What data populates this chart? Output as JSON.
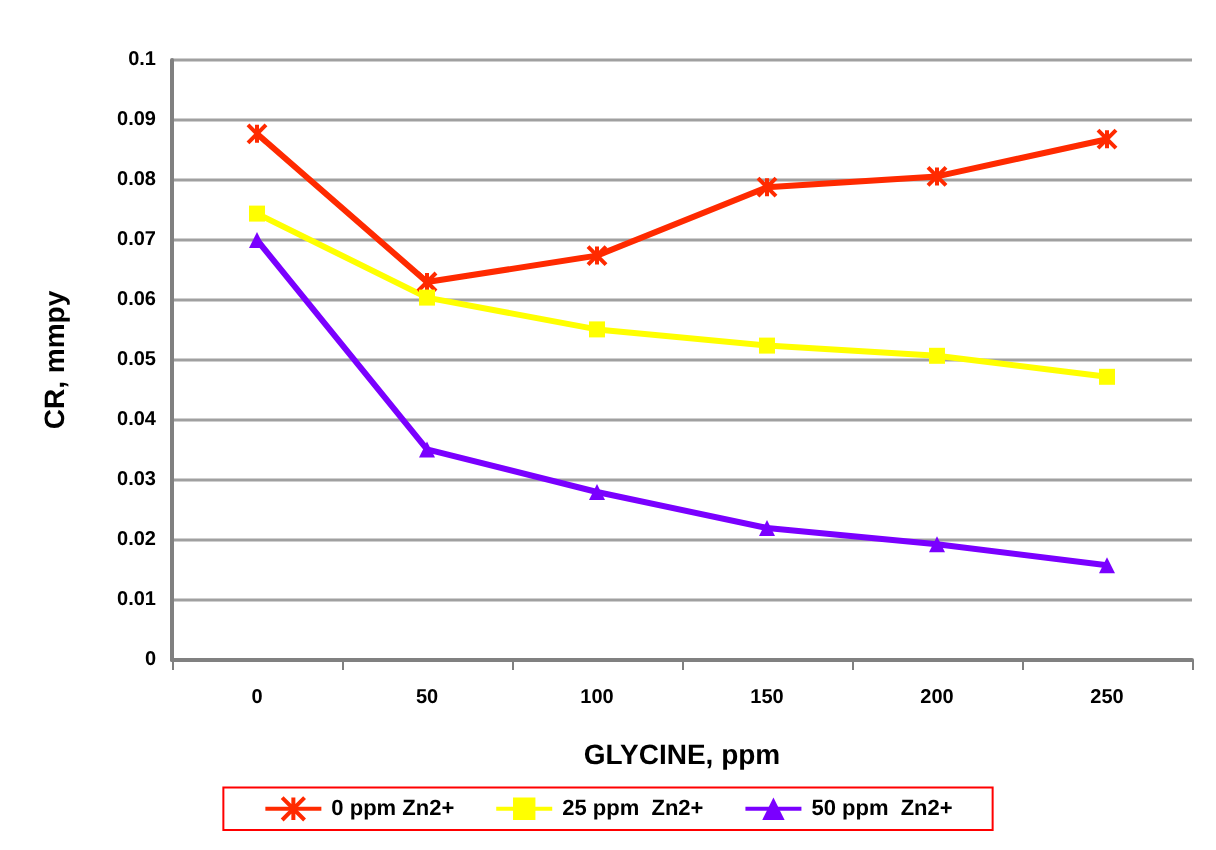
{
  "chart_data": {
    "type": "line",
    "xlabel": "GLYCINE, ppm",
    "ylabel": "CR, mmpy",
    "categories": [
      "0",
      "50",
      "100",
      "150",
      "200",
      "250"
    ],
    "series": [
      {
        "name": "0 ppm Zn2+",
        "color": "#ff2a00",
        "marker": "cross",
        "values": [
          0.0877,
          0.063,
          0.0674,
          0.0788,
          0.0806,
          0.0868
        ]
      },
      {
        "name": "25 ppm  Zn2+",
        "color": "#ffff00",
        "marker": "square",
        "values": [
          0.0744,
          0.0604,
          0.0551,
          0.0524,
          0.0507,
          0.0472
        ]
      },
      {
        "name": "50 ppm  Zn2+",
        "color": "#7a00ff",
        "marker": "triangle",
        "values": [
          0.07,
          0.0351,
          0.028,
          0.022,
          0.0193,
          0.0158
        ]
      }
    ],
    "ylim": [
      0,
      0.1
    ],
    "yticks": [
      0,
      0.01,
      0.02,
      0.03,
      0.04,
      0.05,
      0.06,
      0.07,
      0.08,
      0.09,
      0.1
    ],
    "grid": "y",
    "legend": "bottom"
  }
}
